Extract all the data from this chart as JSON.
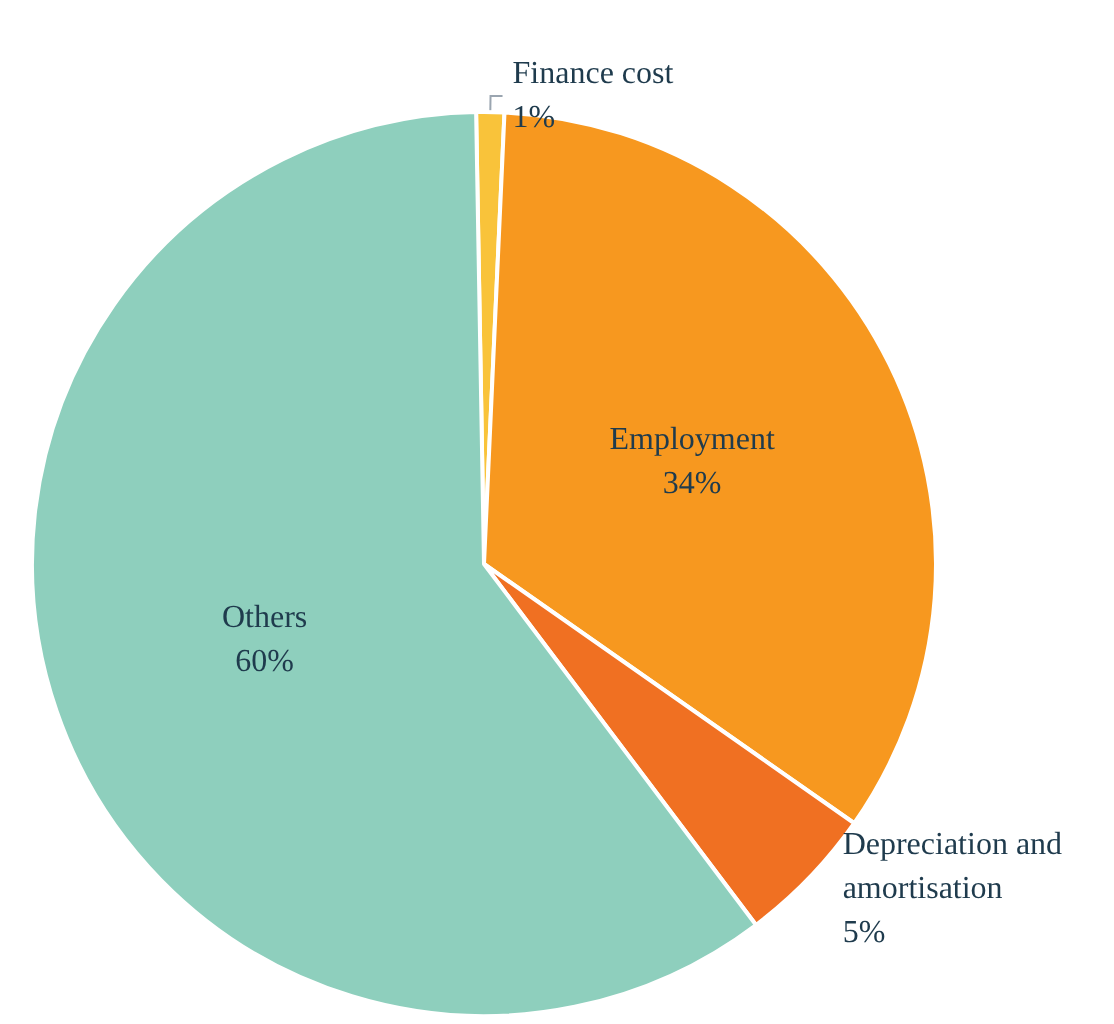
{
  "chart_data": {
    "type": "pie",
    "categories": [
      "Finance cost",
      "Employment",
      "Depreciation and amortisation",
      "Others"
    ],
    "values": [
      1,
      34,
      5,
      60
    ],
    "value_labels": [
      "1%",
      "34%",
      "5%",
      "60%"
    ],
    "colors": [
      "#f9c33a",
      "#f7981f",
      "#f07022",
      "#8ecfbd"
    ],
    "legend": false
  }
}
